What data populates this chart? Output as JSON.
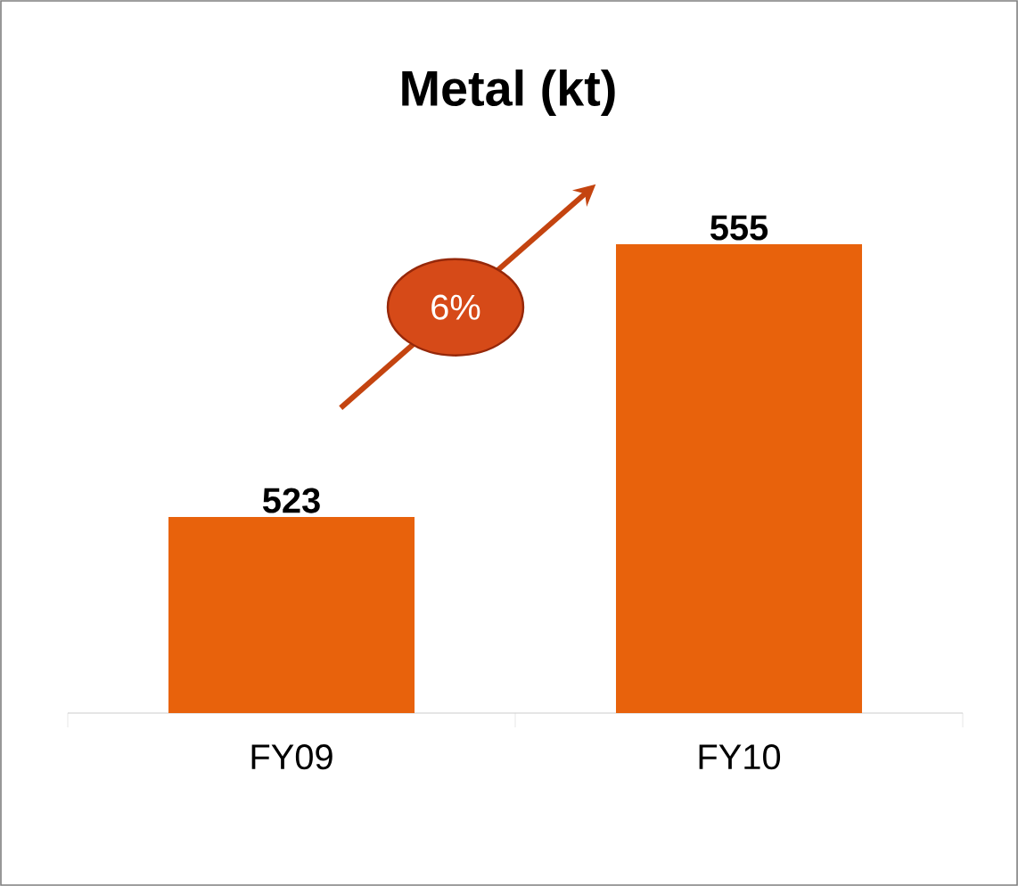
{
  "chart_data": {
    "type": "bar",
    "title": "Metal (kt)",
    "categories": [
      "FY09",
      "FY10"
    ],
    "values": [
      523,
      555
    ],
    "color": "#e8620c",
    "data_labels": true,
    "ylim": [
      500,
      555
    ],
    "annotations": [
      "6%"
    ]
  }
}
